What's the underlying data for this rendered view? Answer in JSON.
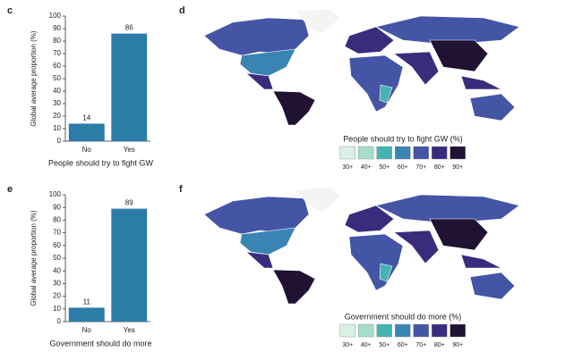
{
  "chart_data": [
    {
      "type": "bar",
      "label": "c",
      "ylabel": "Global average proportion (%)",
      "xlabel": "People should try to fight GW",
      "categories": [
        "No",
        "Yes"
      ],
      "values": [
        14,
        86
      ],
      "color": "#2c7ca8",
      "ylim": [
        0,
        100
      ],
      "yticks": [
        0,
        10,
        20,
        30,
        40,
        50,
        60,
        70,
        80,
        90,
        100
      ]
    },
    {
      "type": "map",
      "label": "d",
      "title": "People should try to fight GW (%)",
      "legend": {
        "categories": [
          "30+",
          "40+",
          "50+",
          "60+",
          "70+",
          "80+",
          "90+"
        ],
        "colors": [
          "#d8f1e4",
          "#a6ddcb",
          "#45b3af",
          "#3a84b4",
          "#4455a6",
          "#3a2c7c",
          "#1f1232"
        ]
      }
    },
    {
      "type": "bar",
      "label": "e",
      "ylabel": "Global average proportion (%)",
      "xlabel": "Government should do more",
      "categories": [
        "No",
        "Yes"
      ],
      "values": [
        11,
        89
      ],
      "color": "#2c7ca8",
      "ylim": [
        0,
        100
      ],
      "yticks": [
        0,
        10,
        20,
        30,
        40,
        50,
        60,
        70,
        80,
        90,
        100
      ]
    },
    {
      "type": "map",
      "label": "f",
      "title": "Government should do more (%)",
      "legend": {
        "categories": [
          "30+",
          "40+",
          "50+",
          "60+",
          "70+",
          "80+",
          "90+"
        ],
        "colors": [
          "#d8f1e4",
          "#a6ddcb",
          "#45b3af",
          "#3a84b4",
          "#4455a6",
          "#3a2c7c",
          "#1f1232"
        ]
      }
    }
  ]
}
